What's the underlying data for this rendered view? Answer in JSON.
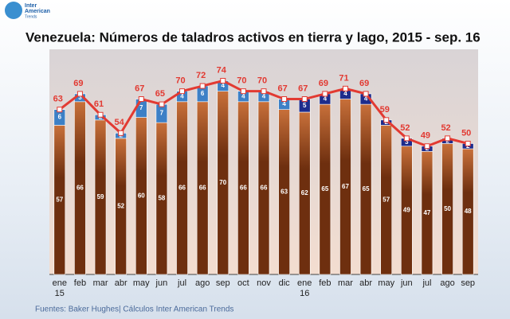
{
  "logo": {
    "line1": "Inter",
    "line2": "American",
    "line3": "Trends"
  },
  "source": "Fuentes: Baker Hughes| Cálculos Inter American Trends",
  "chart_data": {
    "type": "bar",
    "stacked": true,
    "title": "Venezuela: Números de taladros activos en tierra y lago, 2015 - sep. 16",
    "categories": [
      "ene 15",
      "feb",
      "mar",
      "abr",
      "may",
      "jun",
      "jul",
      "ago",
      "sep",
      "oct",
      "nov",
      "dic",
      "ene 16",
      "feb",
      "mar",
      "abr",
      "may",
      "jun",
      "jul",
      "ago",
      "sep"
    ],
    "series": [
      {
        "color": "#6e2f0f",
        "values": [
          57,
          66,
          59,
          52,
          60,
          58,
          66,
          66,
          70,
          66,
          66,
          63,
          62,
          65,
          67,
          65,
          57,
          49,
          47,
          50,
          48
        ]
      },
      {
        "colors": [
          "#3d80c6",
          "#3d80c6",
          "#3d80c6",
          "#3d80c6",
          "#3d80c6",
          "#3d80c6",
          "#3d80c6",
          "#3d80c6",
          "#3d80c6",
          "#3d80c6",
          "#3d80c6",
          "#3d80c6",
          "#1d2c8c",
          "#1d2c8c",
          "#1d2c8c",
          "#1d2c8c",
          "#1d2c8c",
          "#1d2c8c",
          "#1d2c8c",
          "#1d2c8c",
          "#1d2c8c"
        ],
        "values": [
          6,
          3,
          2,
          2,
          7,
          7,
          4,
          6,
          4,
          4,
          4,
          4,
          5,
          4,
          4,
          4,
          2,
          3,
          2,
          2,
          2
        ]
      },
      {
        "type": "line",
        "color": "#e23a32",
        "values": [
          63,
          69,
          61,
          54,
          67,
          65,
          70,
          72,
          74,
          70,
          70,
          67,
          67,
          69,
          71,
          69,
          59,
          52,
          49,
          52,
          50
        ]
      }
    ],
    "ylim": [
      0,
      86
    ]
  }
}
